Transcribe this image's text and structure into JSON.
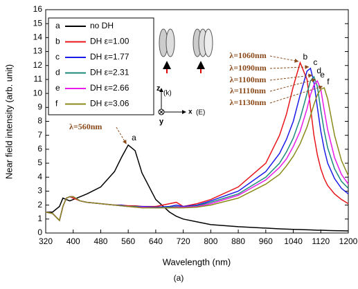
{
  "chart_data": {
    "type": "line",
    "x_label": "Wavelength (nm)",
    "y_label": "Near field intensity (arb. unit)",
    "caption": "(a)",
    "xlim": [
      320,
      1200
    ],
    "xticks": [
      320,
      400,
      480,
      560,
      640,
      720,
      800,
      880,
      960,
      1040,
      1120,
      1200
    ],
    "ylim": [
      0,
      16
    ],
    "yticks": [
      0,
      1,
      2,
      3,
      4,
      5,
      6,
      7,
      8,
      9,
      10,
      11,
      12,
      13,
      14,
      15,
      16
    ],
    "x": [
      320,
      340,
      360,
      370,
      380,
      390,
      400,
      420,
      440,
      480,
      520,
      540,
      560,
      580,
      600,
      640,
      680,
      700,
      720,
      760,
      800,
      880,
      960,
      1000,
      1020,
      1040,
      1060,
      1080,
      1090,
      1100,
      1110,
      1120,
      1130,
      1140,
      1160,
      1180,
      1200
    ],
    "series": [
      {
        "letter": "a",
        "name": "no DH",
        "color": "#000000",
        "values": [
          1.5,
          1.5,
          1.9,
          2.5,
          2.4,
          2.3,
          2.4,
          2.6,
          2.8,
          3.3,
          4.4,
          5.4,
          6.3,
          5.9,
          4.3,
          2.4,
          1.5,
          1.2,
          1.0,
          0.8,
          0.6,
          0.45,
          0.35,
          0.3,
          0.28,
          0.26,
          0.25,
          0.23,
          0.22,
          0.21,
          0.2,
          0.2,
          0.19,
          0.18,
          0.17,
          0.16,
          0.15
        ]
      },
      {
        "letter": "b",
        "name": "DH ε=1.00",
        "color": "#e8141a",
        "values": [
          1.5,
          1.4,
          0.9,
          1.9,
          2.5,
          2.6,
          2.5,
          2.3,
          2.2,
          2.1,
          2.0,
          2.0,
          1.95,
          1.95,
          1.9,
          1.9,
          2.1,
          2.2,
          1.9,
          2.1,
          2.4,
          3.3,
          5.0,
          7.0,
          8.5,
          10.5,
          12.2,
          11.0,
          9.0,
          7.0,
          5.6,
          4.6,
          3.9,
          3.4,
          2.8,
          2.4,
          2.1
        ]
      },
      {
        "letter": "c",
        "name": "DH ε=1.77",
        "color": "#1a1ae8",
        "values": [
          1.5,
          1.4,
          0.9,
          1.9,
          2.5,
          2.6,
          2.6,
          2.3,
          2.2,
          2.1,
          2.0,
          2.0,
          1.9,
          1.9,
          1.9,
          1.85,
          1.9,
          2.0,
          1.9,
          2.0,
          2.3,
          3.0,
          4.4,
          5.7,
          6.7,
          8.0,
          9.9,
          11.6,
          11.8,
          10.8,
          9.0,
          7.3,
          6.0,
          5.0,
          3.9,
          3.2,
          2.8
        ]
      },
      {
        "letter": "d",
        "name": "DH ε=2.31",
        "color": "#1a8a7a",
        "values": [
          1.5,
          1.4,
          0.9,
          1.9,
          2.5,
          2.6,
          2.6,
          2.3,
          2.2,
          2.1,
          2.0,
          1.95,
          1.9,
          1.9,
          1.85,
          1.8,
          1.85,
          1.9,
          1.85,
          1.95,
          2.2,
          2.8,
          4.0,
          5.0,
          5.8,
          6.8,
          8.2,
          10.0,
          10.9,
          11.2,
          10.5,
          8.8,
          7.3,
          6.1,
          4.6,
          3.7,
          3.2
        ]
      },
      {
        "letter": "e",
        "name": "DH ε=2.66",
        "color": "#e81ae8",
        "values": [
          1.5,
          1.4,
          0.9,
          1.9,
          2.5,
          2.6,
          2.6,
          2.3,
          2.2,
          2.1,
          2.0,
          1.95,
          1.9,
          1.85,
          1.85,
          1.8,
          1.8,
          1.85,
          1.85,
          1.9,
          2.1,
          2.7,
          3.8,
          4.7,
          5.3,
          6.2,
          7.3,
          8.9,
          9.9,
          10.6,
          10.9,
          10.3,
          8.8,
          7.4,
          5.4,
          4.2,
          3.5
        ]
      },
      {
        "letter": "f",
        "name": "DH ε=3.06",
        "color": "#8a8a1a",
        "values": [
          1.5,
          1.4,
          0.9,
          1.9,
          2.5,
          2.6,
          2.6,
          2.3,
          2.2,
          2.1,
          2.0,
          1.95,
          1.9,
          1.85,
          1.8,
          1.8,
          1.8,
          1.8,
          1.8,
          1.85,
          2.0,
          2.5,
          3.5,
          4.2,
          4.8,
          5.5,
          6.4,
          7.6,
          8.4,
          9.2,
          9.9,
          10.3,
          10.4,
          9.6,
          7.0,
          5.2,
          4.1
        ]
      }
    ],
    "annotations": [
      "λ=560nm",
      "λ=1060nm",
      "λ=1090nm",
      "λ=1100nm",
      "λ=1110nm",
      "λ=1130nm"
    ],
    "inset_labels": [
      "z",
      "x",
      "y",
      "(k)",
      "(E)"
    ]
  }
}
